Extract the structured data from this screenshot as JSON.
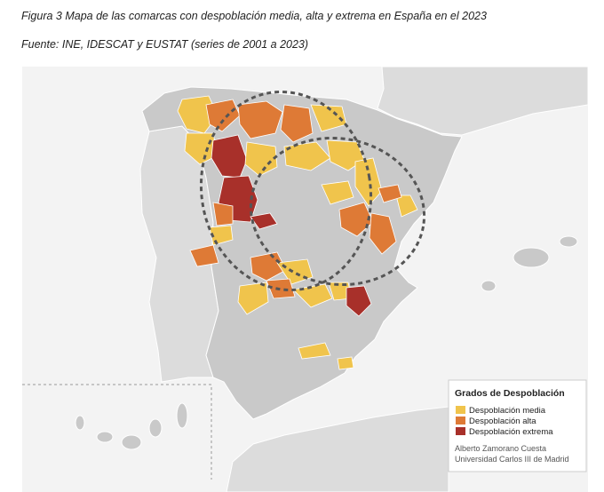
{
  "figure": {
    "caption": "Figura 3 Mapa de las comarcas con despoblación media, alta y extrema en España en el 2023",
    "source": "Fuente: INE, IDESCAT y EUSTAT (series de 2001 a 2023)"
  },
  "legend": {
    "title": "Grados de Despoblación",
    "items": [
      {
        "label": "Despoblación media",
        "color": "#f0c44c"
      },
      {
        "label": "Despoblación alta",
        "color": "#de7a36"
      },
      {
        "label": "Despoblación extrema",
        "color": "#a8302a"
      }
    ]
  },
  "credit": [
    "Alberto Zamorano Cuesta",
    "Universidad Carlos III de Madrid"
  ]
}
